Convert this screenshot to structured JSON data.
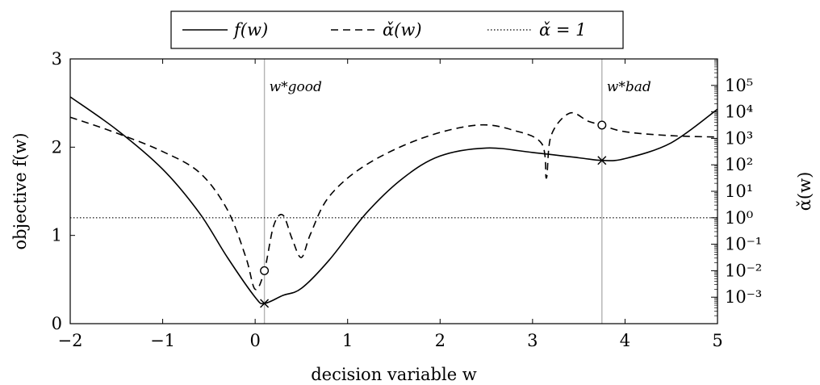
{
  "chart_data": {
    "type": "line",
    "xlabel": "decision variable w",
    "ylabel_left": "objective f(w)",
    "ylabel_right": "α̌(w)",
    "xlim": [
      -2,
      5
    ],
    "ylim_left": [
      0,
      3
    ],
    "ylim_right_log10": [
      -4,
      6
    ],
    "right_scale": "log",
    "x_ticks": [
      "−2",
      "−1",
      "0",
      "1",
      "2",
      "3",
      "4",
      "5"
    ],
    "y_left_ticks": [
      "0",
      "1",
      "2",
      "3"
    ],
    "y_right_ticks": [
      {
        "exp": -3,
        "label": "10⁻³"
      },
      {
        "exp": -2,
        "label": "10⁻²"
      },
      {
        "exp": -1,
        "label": "10⁻¹"
      },
      {
        "exp": 0,
        "label": "10⁰"
      },
      {
        "exp": 1,
        "label": "10¹"
      },
      {
        "exp": 2,
        "label": "10²"
      },
      {
        "exp": 3,
        "label": "10³"
      },
      {
        "exp": 4,
        "label": "10⁴"
      },
      {
        "exp": 5,
        "label": "10⁵"
      }
    ],
    "legend_position": "top-center, outside plot",
    "legend": [
      "f(w)",
      "α̌(w)",
      "α̌ = 1"
    ],
    "series": [
      {
        "name": "f(w)",
        "axis": "left",
        "style": "solid",
        "x": [
          -2,
          -1.5,
          -1,
          -0.6,
          -0.3,
          0,
          0.1,
          0.3,
          0.5,
          0.8,
          1.2,
          1.6,
          2,
          2.5,
          3,
          3.5,
          3.75,
          4,
          4.5,
          5
        ],
        "y": [
          2.57,
          2.2,
          1.75,
          1.25,
          0.75,
          0.3,
          0.23,
          0.32,
          0.4,
          0.72,
          1.25,
          1.65,
          1.9,
          1.99,
          1.94,
          1.88,
          1.85,
          1.87,
          2.05,
          2.43
        ]
      },
      {
        "name": "α̌(w)",
        "axis": "right",
        "style": "dashed",
        "x": [
          -2,
          -1.5,
          -1,
          -0.6,
          -0.3,
          -0.1,
          0,
          0.1,
          0.2,
          0.3,
          0.4,
          0.5,
          0.6,
          0.8,
          1.2,
          1.8,
          2.4,
          2.8,
          3.1,
          3.15,
          3.2,
          3.4,
          3.6,
          3.75,
          4,
          4.5,
          5
        ],
        "y_log10": [
          3.8,
          3.2,
          2.5,
          1.7,
          0.3,
          -1.5,
          -2.7,
          -2.0,
          -0.3,
          0.1,
          -0.8,
          -1.5,
          -0.6,
          0.8,
          2.0,
          3.0,
          3.5,
          3.3,
          2.8,
          1.5,
          3.1,
          3.95,
          3.65,
          3.5,
          3.25,
          3.1,
          3.05
        ]
      },
      {
        "name": "α̌ = 1",
        "axis": "right",
        "style": "dotted",
        "x": [
          -2,
          5
        ],
        "y_log10": [
          0,
          0
        ]
      }
    ],
    "vlines_x": [
      0.1,
      3.75
    ],
    "markers": [
      {
        "symbol": "×",
        "series": "f(w)",
        "x": 0.1,
        "y": 0.23
      },
      {
        "symbol": "×",
        "series": "f(w)",
        "x": 3.75,
        "y": 1.85
      },
      {
        "symbol": "○",
        "series": "α̌(w)",
        "x": 0.1,
        "y_log10": -2.0
      },
      {
        "symbol": "○",
        "series": "α̌(w)",
        "x": 3.75,
        "y_log10": 3.5
      }
    ],
    "annotations": [
      {
        "text": "w*good",
        "x": 0.1
      },
      {
        "text": "w*bad",
        "x": 3.75
      }
    ]
  }
}
